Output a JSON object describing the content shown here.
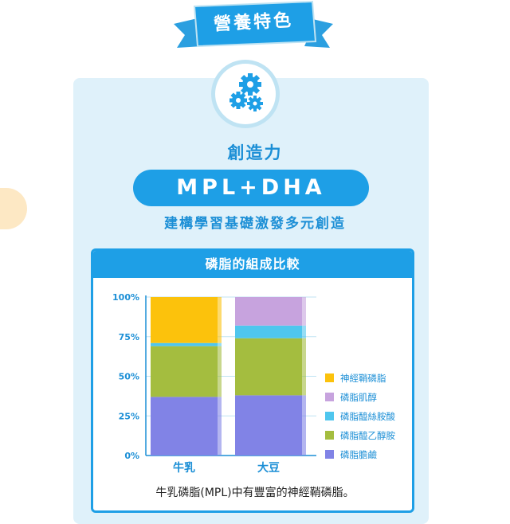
{
  "banner": {
    "title": "營養特色"
  },
  "feature": {
    "title": "創造力",
    "pill": "MPL+DHA",
    "subtitle": "建構學習基礎激發多元創造"
  },
  "chart_data": {
    "type": "bar",
    "stacked": true,
    "title": "磷脂的組成比較",
    "categories": [
      "牛乳",
      "大豆"
    ],
    "ylim": [
      0,
      100
    ],
    "yticks": [
      "0%",
      "25%",
      "50%",
      "75%",
      "100%"
    ],
    "legend_position": "right",
    "series": [
      {
        "name": "磷脂膽鹼",
        "color": "#8183e6",
        "values": [
          37,
          38
        ]
      },
      {
        "name": "磷脂醯乙醇胺",
        "color": "#a4bd3f",
        "values": [
          32,
          36
        ]
      },
      {
        "name": "磷脂醯絲胺酸",
        "color": "#4fc6ee",
        "values": [
          2,
          8
        ]
      },
      {
        "name": "磷脂肌醇",
        "color": "#c7a3de",
        "values": [
          0,
          18
        ]
      },
      {
        "name": "神經鞘磷脂",
        "color": "#fcc20c",
        "values": [
          29,
          0
        ]
      }
    ]
  },
  "caption": "牛乳磷脂(MPL)中有豐富的神經鞘磷脂。",
  "colors": {
    "accent": "#1e9fe6",
    "card": "#dff1fa"
  }
}
